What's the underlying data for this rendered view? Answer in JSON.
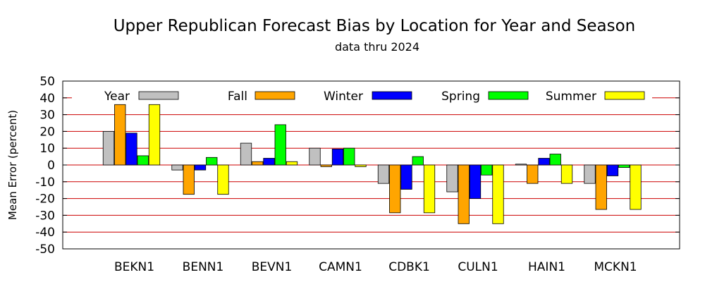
{
  "chart_data": {
    "type": "bar",
    "title": "Upper Republican Forecast Bias by Location for Year and Season",
    "subtitle": "data thru 2024",
    "ylabel": "Mean Error (percent)",
    "xlabel": "",
    "ylim": [
      -50,
      50
    ],
    "yticks": [
      50,
      40,
      30,
      20,
      10,
      0,
      -10,
      -20,
      -30,
      -40,
      -50
    ],
    "grid": true,
    "legend_position": "top",
    "categories": [
      "BEKN1",
      "BENN1",
      "BEVN1",
      "CAMN1",
      "CDBK1",
      "CULN1",
      "HAIN1",
      "MCKN1"
    ],
    "series": [
      {
        "name": "Year",
        "color": "#c0c0c0",
        "values": [
          20,
          -3,
          13,
          10,
          -11,
          -16,
          0.5,
          -11
        ]
      },
      {
        "name": "Fall",
        "color": "#ffa500",
        "values": [
          36,
          -17.5,
          2,
          -1,
          -28.5,
          -35,
          -11,
          -26.5
        ]
      },
      {
        "name": "Winter",
        "color": "#0000ff",
        "values": [
          19,
          -3,
          4,
          9.5,
          -14.5,
          -20,
          4,
          -6.5
        ]
      },
      {
        "name": "Spring",
        "color": "#00ff00",
        "values": [
          5.5,
          4.5,
          24,
          10,
          5,
          -6,
          6.5,
          -1.5
        ]
      },
      {
        "name": "Summer",
        "color": "#ffff00",
        "values": [
          36,
          -17.5,
          2,
          -1,
          -28.5,
          -35,
          -11,
          -26.5
        ]
      }
    ],
    "colors": {
      "grid": "#cc0000",
      "frame": "#000000",
      "bar_outline": "#000000"
    }
  }
}
